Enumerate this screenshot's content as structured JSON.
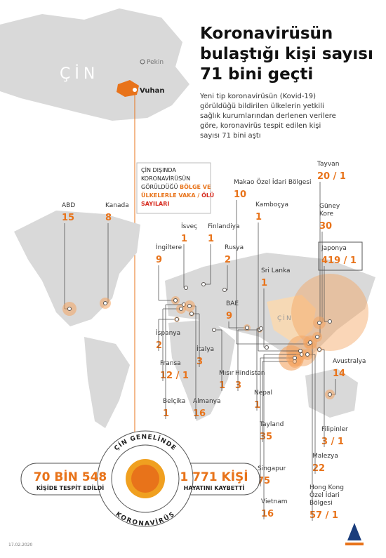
{
  "header": {
    "title": [
      "Koronavirüsün",
      "bulaştığı kişi sayısı",
      "71 bini geçti"
    ],
    "description": [
      "Yeni tip koronavirüsün (Kovid-19)",
      "görüldüğü bildirilen ülkelerin yetkili",
      "sağlık kurumlarından derlenen verilere",
      "göre, koronavirüs tespit edilen kişi",
      "sayısı 71 bini aştı"
    ]
  },
  "china_map": {
    "country": "ÇİN",
    "capital": "Pekin",
    "city": "Vuhan",
    "world_label": "ÇİN"
  },
  "legend_box": {
    "line1": "ÇİN DIŞINDA",
    "line2": "KORONAVİRÜSÜN",
    "line3a": "GÖRÜLDÜĞÜ ",
    "line3b": "BÖLGE VE",
    "line4a": "ÜLKELERLE VAKA / ",
    "line4b": "ÖLÜ",
    "line5": "SAYILARI"
  },
  "countries": [
    {
      "name": [
        "ABD"
      ],
      "figure": "15"
    },
    {
      "name": [
        "Kanada"
      ],
      "figure": "8"
    },
    {
      "name": [
        "İsveç"
      ],
      "figure": "1"
    },
    {
      "name": [
        "Finlandiya"
      ],
      "figure": "1"
    },
    {
      "name": [
        "İngiltere"
      ],
      "figure": "9"
    },
    {
      "name": [
        "Rusya"
      ],
      "figure": "2"
    },
    {
      "name": [
        "Sri Lanka"
      ],
      "figure": "1"
    },
    {
      "name": [
        "BAE"
      ],
      "figure": "9"
    },
    {
      "name": [
        "İspanya"
      ],
      "figure": "2"
    },
    {
      "name": [
        "İtalya"
      ],
      "figure": "3"
    },
    {
      "name": [
        "Fransa"
      ],
      "figure": "12 / 1"
    },
    {
      "name": [
        "Mısır"
      ],
      "figure": "1"
    },
    {
      "name": [
        "Hindistan"
      ],
      "figure": "3"
    },
    {
      "name": [
        "Belçika"
      ],
      "figure": "1"
    },
    {
      "name": [
        "Almanya"
      ],
      "figure": "16"
    },
    {
      "name": [
        "Nepal"
      ],
      "figure": "1"
    },
    {
      "name": [
        "Tayland"
      ],
      "figure": "35"
    },
    {
      "name": [
        "Singapur"
      ],
      "figure": "75"
    },
    {
      "name": [
        "Vietnam"
      ],
      "figure": "16"
    },
    {
      "name": [
        "Makao Özel İdari Bölgesi"
      ],
      "figure": "10"
    },
    {
      "name": [
        "Kamboçya"
      ],
      "figure": "1"
    },
    {
      "name": [
        "Tayvan"
      ],
      "figure": "20 / 1"
    },
    {
      "name": [
        "Güney",
        "Kore"
      ],
      "figure": "30"
    },
    {
      "name": [
        "Japonya"
      ],
      "figure": "419 / 1"
    },
    {
      "name": [
        "Avustralya"
      ],
      "figure": "14"
    },
    {
      "name": [
        "Filipinler"
      ],
      "figure": "3 / 1"
    },
    {
      "name": [
        "Malezya"
      ],
      "figure": "22"
    },
    {
      "name": [
        "Hong Kong",
        "Özel İdari",
        "Bölgesi"
      ],
      "figure": "57 / 1"
    }
  ],
  "summary": {
    "ring_top": "ÇİN GENELİNDE",
    "ring_bottom": "KORONAVİRÜS",
    "cases": "70 BİN 548",
    "cases_label": "KİŞİDE TESPİT EDİLDİ",
    "deaths": "1 771 KİŞİ",
    "deaths_label": "HAYATINI KAYBETTİ"
  },
  "footer": {
    "date": "17.02.2020"
  }
}
